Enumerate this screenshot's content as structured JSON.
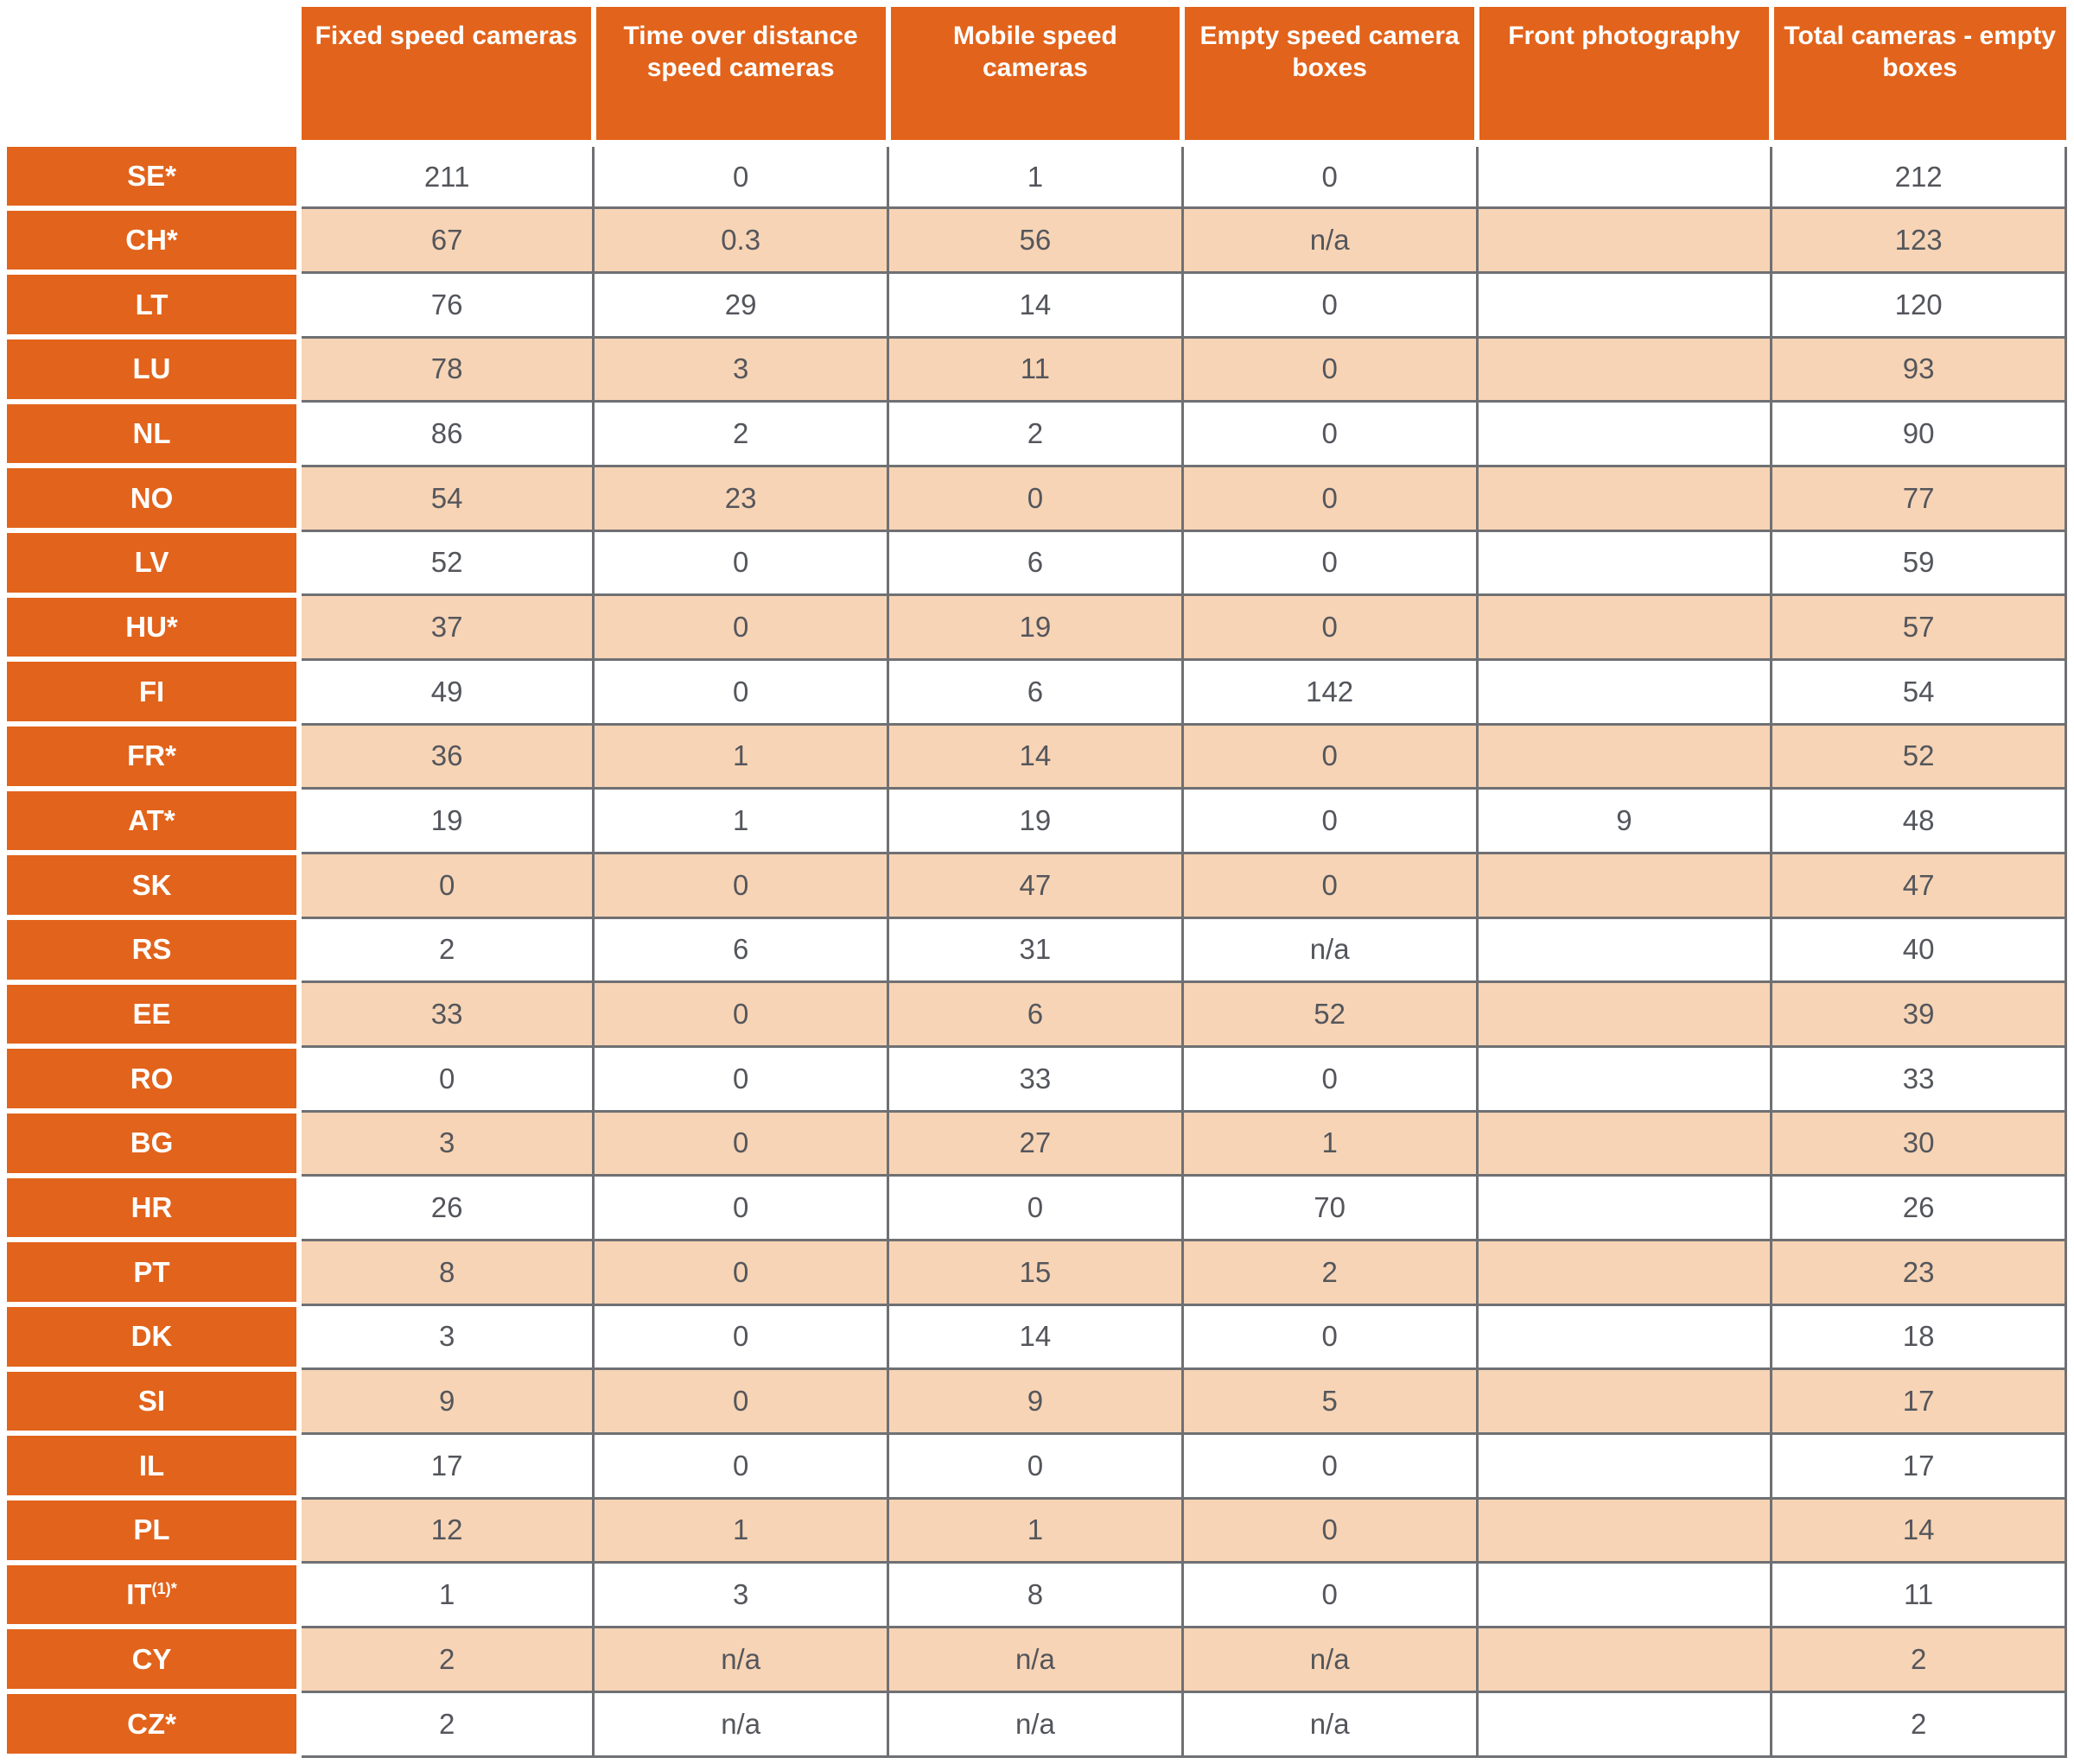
{
  "colors": {
    "header_orange": "#E2631B",
    "alt_row_peach": "#F7D4B5",
    "grid_border": "#6F7073",
    "number_text": "#54565C",
    "header_text": "#FFFFFF"
  },
  "chart_data": {
    "type": "table",
    "title": "",
    "columns": [
      "Fixed speed cameras",
      "Time over distance speed cameras",
      "Mobile speed cameras",
      "Empty speed camera boxes",
      "Front photography",
      "Total cameras - empty boxes"
    ],
    "rows": [
      {
        "label": "SE*",
        "sup": "",
        "values": [
          "211",
          "0",
          "1",
          "0",
          "",
          "212"
        ]
      },
      {
        "label": "CH*",
        "sup": "",
        "values": [
          "67",
          "0.3",
          "56",
          "n/a",
          "",
          "123"
        ]
      },
      {
        "label": "LT",
        "sup": "",
        "values": [
          "76",
          "29",
          "14",
          "0",
          "",
          "120"
        ]
      },
      {
        "label": "LU",
        "sup": "",
        "values": [
          "78",
          "3",
          "11",
          "0",
          "",
          "93"
        ]
      },
      {
        "label": "NL",
        "sup": "",
        "values": [
          "86",
          "2",
          "2",
          "0",
          "",
          "90"
        ]
      },
      {
        "label": "NO",
        "sup": "",
        "values": [
          "54",
          "23",
          "0",
          "0",
          "",
          "77"
        ]
      },
      {
        "label": "LV",
        "sup": "",
        "values": [
          "52",
          "0",
          "6",
          "0",
          "",
          "59"
        ]
      },
      {
        "label": "HU*",
        "sup": "",
        "values": [
          "37",
          "0",
          "19",
          "0",
          "",
          "57"
        ]
      },
      {
        "label": "FI",
        "sup": "",
        "values": [
          "49",
          "0",
          "6",
          "142",
          "",
          "54"
        ]
      },
      {
        "label": "FR*",
        "sup": "",
        "values": [
          "36",
          "1",
          "14",
          "0",
          "",
          "52"
        ]
      },
      {
        "label": "AT*",
        "sup": "",
        "values": [
          "19",
          "1",
          "19",
          "0",
          "9",
          "48"
        ]
      },
      {
        "label": "SK",
        "sup": "",
        "values": [
          "0",
          "0",
          "47",
          "0",
          "",
          "47"
        ]
      },
      {
        "label": "RS",
        "sup": "",
        "values": [
          "2",
          "6",
          "31",
          "n/a",
          "",
          "40"
        ]
      },
      {
        "label": "EE",
        "sup": "",
        "values": [
          "33",
          "0",
          "6",
          "52",
          "",
          "39"
        ]
      },
      {
        "label": "RO",
        "sup": "",
        "values": [
          "0",
          "0",
          "33",
          "0",
          "",
          "33"
        ]
      },
      {
        "label": "BG",
        "sup": "",
        "values": [
          "3",
          "0",
          "27",
          "1",
          "",
          "30"
        ]
      },
      {
        "label": "HR",
        "sup": "",
        "values": [
          "26",
          "0",
          "0",
          "70",
          "",
          "26"
        ]
      },
      {
        "label": "PT",
        "sup": "",
        "values": [
          "8",
          "0",
          "15",
          "2",
          "",
          "23"
        ]
      },
      {
        "label": "DK",
        "sup": "",
        "values": [
          "3",
          "0",
          "14",
          "0",
          "",
          "18"
        ]
      },
      {
        "label": "SI",
        "sup": "",
        "values": [
          "9",
          "0",
          "9",
          "5",
          "",
          "17"
        ]
      },
      {
        "label": "IL",
        "sup": "",
        "values": [
          "17",
          "0",
          "0",
          "0",
          "",
          "17"
        ]
      },
      {
        "label": "PL",
        "sup": "",
        "values": [
          "12",
          "1",
          "1",
          "0",
          "",
          "14"
        ]
      },
      {
        "label": "IT",
        "sup": "(1)*",
        "values": [
          "1",
          "3",
          "8",
          "0",
          "",
          "11"
        ]
      },
      {
        "label": "CY",
        "sup": "",
        "values": [
          "2",
          "n/a",
          "n/a",
          "n/a",
          "",
          "2"
        ]
      },
      {
        "label": "CZ*",
        "sup": "",
        "values": [
          "2",
          "n/a",
          "n/a",
          "n/a",
          "",
          "2"
        ]
      }
    ]
  }
}
